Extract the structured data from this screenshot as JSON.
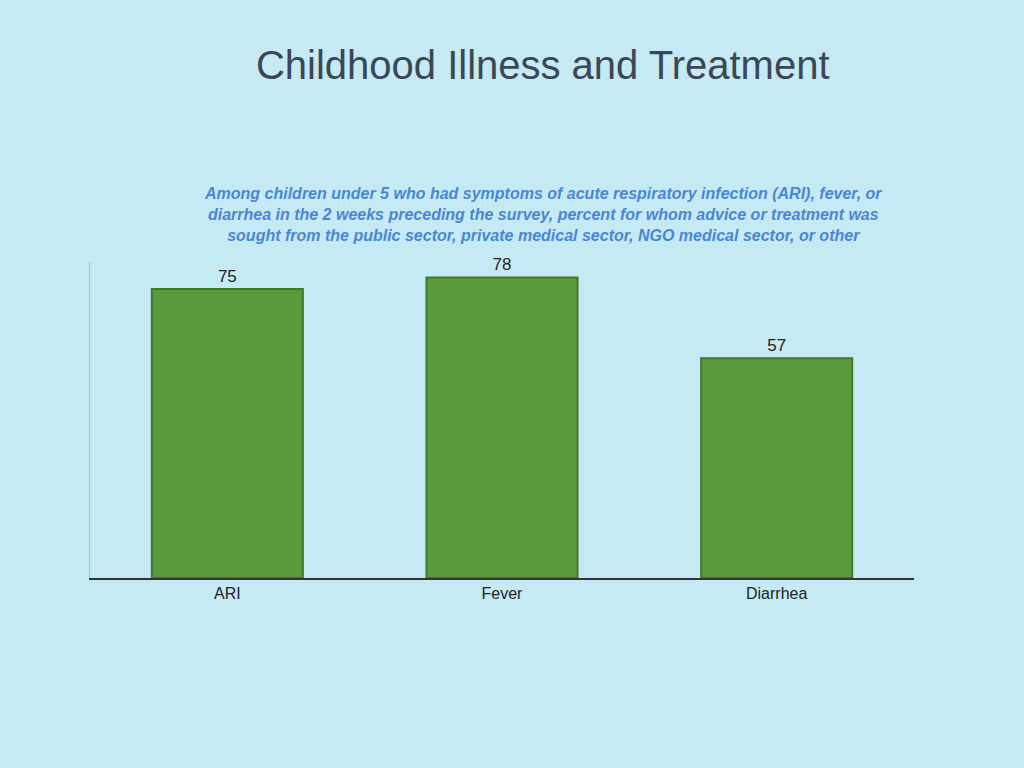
{
  "chart_data": {
    "type": "bar",
    "title": "Childhood Illness and Treatment",
    "subtitle": [
      "Among children under 5 who had symptoms of acute respiratory infection (ARI), fever, or",
      "diarrhea in the 2 weeks preceding the survey, percent for whom advice or treatment was",
      "sought from the public sector, private medical sector, NGO medical sector, or other"
    ],
    "categories": [
      "ARI",
      "Fever",
      "Diarrhea"
    ],
    "values": [
      75,
      78,
      57
    ],
    "color": "#5b9a3c",
    "ylim": [
      0,
      82
    ],
    "yticks": [],
    "grid": false,
    "data_labels": true,
    "tick_labels": "x"
  }
}
